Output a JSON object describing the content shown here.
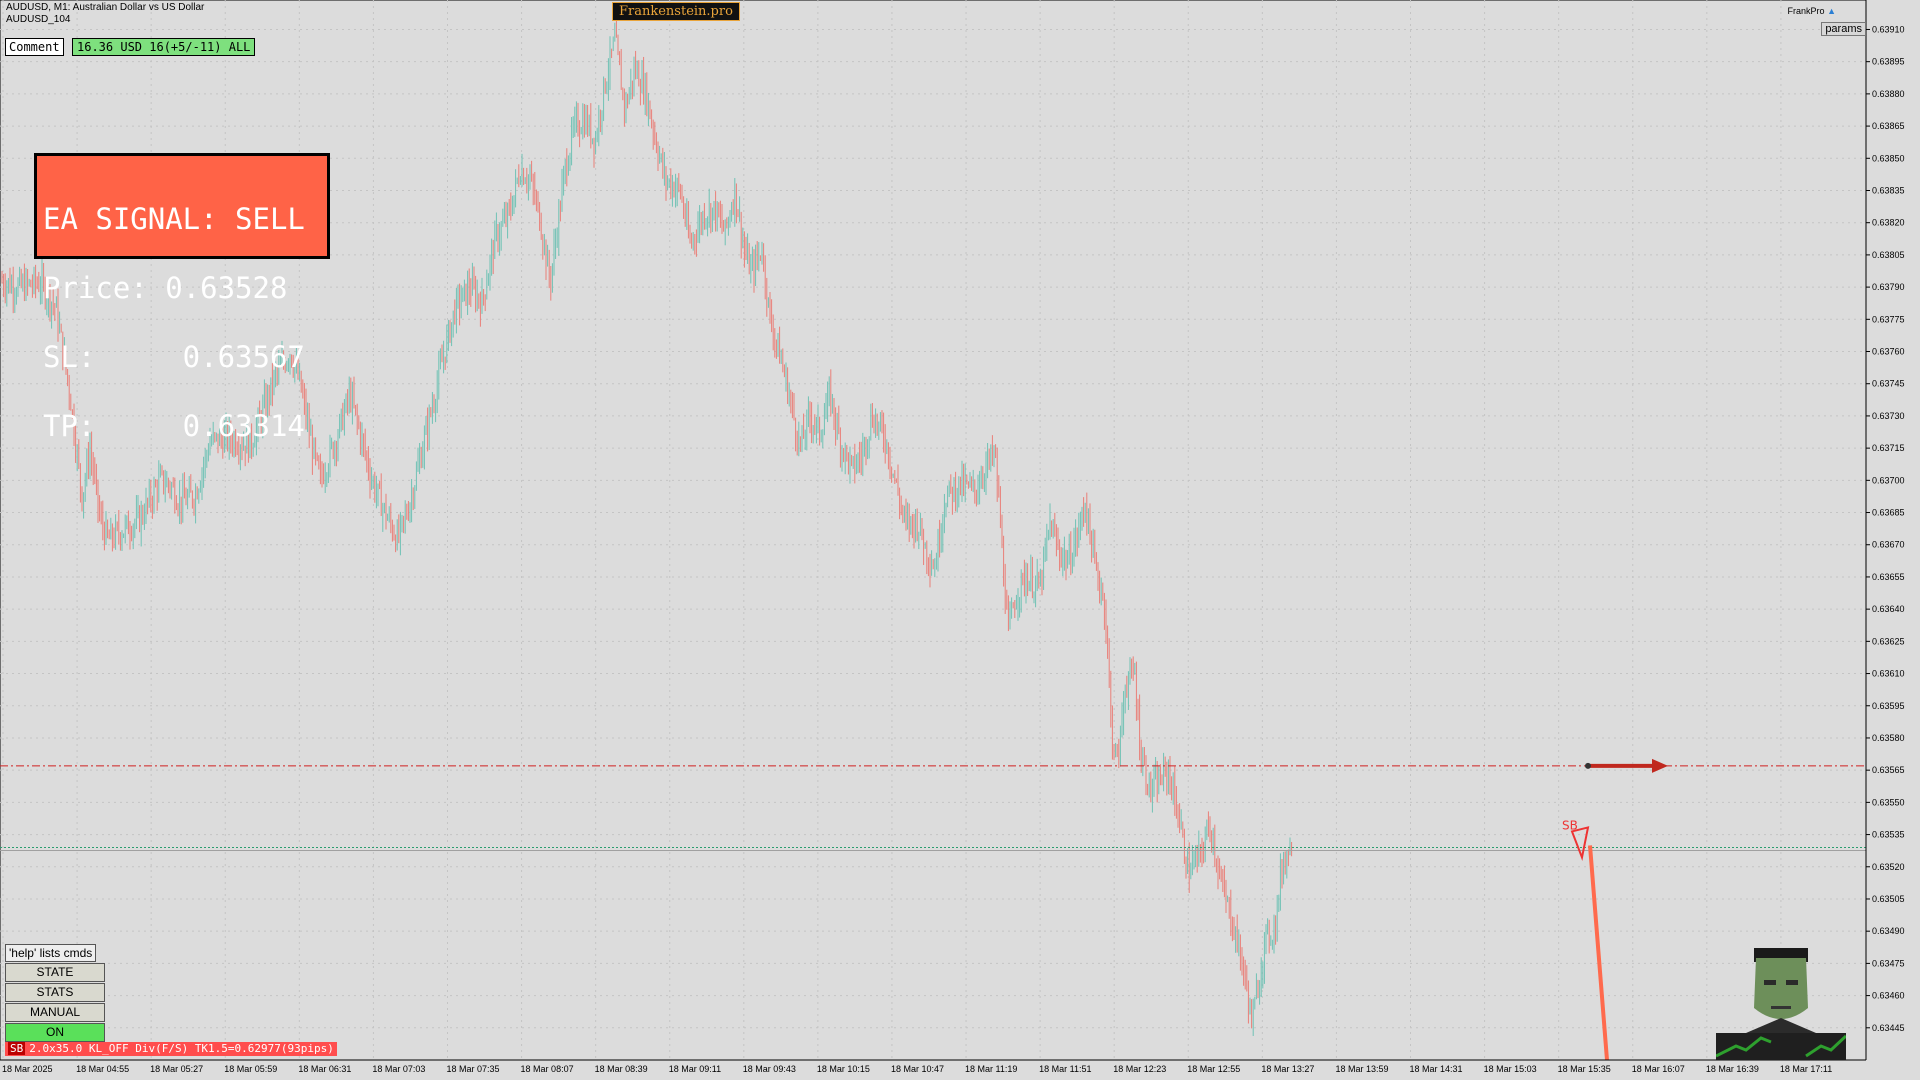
{
  "header": {
    "line1": "AUDUSD, M1:  Australian Dollar vs US Dollar",
    "line2": "AUDUSD_104"
  },
  "brand": "Frankenstein.pro",
  "comment_button": "Comment",
  "pnl_badge": "16.36 USD 16(+5/-11) ALL",
  "signal": {
    "title": "EA SIGNAL: SELL",
    "price": "Price: 0.63528",
    "sl": "SL:     0.63567",
    "tp": "TP:     0.63314"
  },
  "top_right": {
    "label": "FrankPro",
    "params": "params"
  },
  "buttons": {
    "help": "'help' lists cmds",
    "state": "STATE",
    "stats": "STATS",
    "manual": "MANUAL",
    "on": "ON"
  },
  "status": {
    "tag": "SB",
    "text": "2.0x35.0 KL_OFF Div(F/S) TK1.5=0.62977(93pips)"
  },
  "annotation": "SB",
  "colors": {
    "bull": "#6fc2b5",
    "bear": "#e97f78",
    "sl_line": "#d02020",
    "bid_line": "#2a9d6e",
    "arrow": "#c0281e"
  },
  "chart_data": {
    "type": "candlestick",
    "symbol": "AUDUSD",
    "timeframe": "M1",
    "ylim": [
      0.6343,
      0.6392
    ],
    "y_ticks": [
      "0.63910",
      "0.63895",
      "0.63880",
      "0.63865",
      "0.63850",
      "0.63835",
      "0.63820",
      "0.63805",
      "0.63790",
      "0.63775",
      "0.63760",
      "0.63745",
      "0.63730",
      "0.63715",
      "0.63700",
      "0.63685",
      "0.63670",
      "0.63655",
      "0.63640",
      "0.63625",
      "0.63610",
      "0.63595",
      "0.63580",
      "0.63565",
      "0.63550",
      "0.63535",
      "0.63520",
      "0.63505",
      "0.63490",
      "0.63475",
      "0.63460",
      "0.63445"
    ],
    "x_ticks": [
      "18 Mar 2025",
      "18 Mar 04:55",
      "18 Mar 05:27",
      "18 Mar 05:59",
      "18 Mar 06:31",
      "18 Mar 07:03",
      "18 Mar 07:35",
      "18 Mar 08:07",
      "18 Mar 08:39",
      "18 Mar 09:11",
      "18 Mar 09:43",
      "18 Mar 10:15",
      "18 Mar 10:47",
      "18 Mar 11:19",
      "18 Mar 11:51",
      "18 Mar 12:23",
      "18 Mar 12:55",
      "18 Mar 13:27",
      "18 Mar 13:59",
      "18 Mar 14:31",
      "18 Mar 15:03",
      "18 Mar 15:35",
      "18 Mar 16:07",
      "18 Mar 16:39",
      "18 Mar 17:11"
    ],
    "current_price": "0.63529",
    "sl_level": 0.63567,
    "bid_level": 0.63529,
    "price_path": [
      [
        0,
        0.63793
      ],
      [
        20,
        0.6379
      ],
      [
        40,
        0.63792
      ],
      [
        56,
        0.6378
      ],
      [
        70,
        0.6374
      ],
      [
        82,
        0.63692
      ],
      [
        90,
        0.63715
      ],
      [
        100,
        0.63682
      ],
      [
        108,
        0.63672
      ],
      [
        120,
        0.63676
      ],
      [
        140,
        0.63682
      ],
      [
        160,
        0.637
      ],
      [
        170,
        0.63698
      ],
      [
        180,
        0.6369
      ],
      [
        195,
        0.63693
      ],
      [
        210,
        0.63718
      ],
      [
        230,
        0.6372
      ],
      [
        250,
        0.63716
      ],
      [
        265,
        0.63735
      ],
      [
        275,
        0.63748
      ],
      [
        290,
        0.6376
      ],
      [
        300,
        0.63745
      ],
      [
        310,
        0.6372
      ],
      [
        320,
        0.637
      ],
      [
        335,
        0.63718
      ],
      [
        350,
        0.6374
      ],
      [
        360,
        0.63722
      ],
      [
        372,
        0.637
      ],
      [
        385,
        0.63685
      ],
      [
        398,
        0.63672
      ],
      [
        410,
        0.6369
      ],
      [
        420,
        0.6371
      ],
      [
        430,
        0.6373
      ],
      [
        442,
        0.63755
      ],
      [
        455,
        0.6378
      ],
      [
        470,
        0.6379
      ],
      [
        482,
        0.63783
      ],
      [
        495,
        0.63812
      ],
      [
        510,
        0.63825
      ],
      [
        520,
        0.63845
      ],
      [
        530,
        0.6384
      ],
      [
        540,
        0.63822
      ],
      [
        550,
        0.63792
      ],
      [
        565,
        0.63845
      ],
      [
        575,
        0.63865
      ],
      [
        585,
        0.63868
      ],
      [
        595,
        0.63858
      ],
      [
        605,
        0.63885
      ],
      [
        615,
        0.63905
      ],
      [
        625,
        0.63873
      ],
      [
        635,
        0.63892
      ],
      [
        645,
        0.63882
      ],
      [
        655,
        0.6386
      ],
      [
        665,
        0.6384
      ],
      [
        680,
        0.63835
      ],
      [
        690,
        0.6381
      ],
      [
        705,
        0.63825
      ],
      [
        715,
        0.63826
      ],
      [
        725,
        0.63815
      ],
      [
        735,
        0.63835
      ],
      [
        745,
        0.63805
      ],
      [
        752,
        0.63797
      ],
      [
        762,
        0.63808
      ],
      [
        770,
        0.63775
      ],
      [
        780,
        0.63758
      ],
      [
        790,
        0.63738
      ],
      [
        800,
        0.63715
      ],
      [
        810,
        0.6373
      ],
      [
        820,
        0.63722
      ],
      [
        830,
        0.6374
      ],
      [
        840,
        0.63718
      ],
      [
        852,
        0.63705
      ],
      [
        862,
        0.63712
      ],
      [
        872,
        0.6373
      ],
      [
        885,
        0.6372
      ],
      [
        895,
        0.637
      ],
      [
        905,
        0.6368
      ],
      [
        918,
        0.6368
      ],
      [
        928,
        0.63665
      ],
      [
        935,
        0.6366
      ],
      [
        945,
        0.63692
      ],
      [
        960,
        0.63698
      ],
      [
        975,
        0.63695
      ],
      [
        985,
        0.63706
      ],
      [
        995,
        0.63712
      ],
      [
        1000,
        0.63682
      ],
      [
        1008,
        0.63628
      ],
      [
        1015,
        0.63645
      ],
      [
        1025,
        0.63655
      ],
      [
        1040,
        0.6365
      ],
      [
        1050,
        0.6368
      ],
      [
        1058,
        0.63668
      ],
      [
        1068,
        0.63662
      ],
      [
        1078,
        0.63675
      ],
      [
        1085,
        0.6369
      ],
      [
        1095,
        0.6366
      ],
      [
        1105,
        0.63642
      ],
      [
        1112,
        0.6358
      ],
      [
        1118,
        0.63568
      ],
      [
        1125,
        0.63605
      ],
      [
        1135,
        0.6361
      ],
      [
        1140,
        0.63575
      ],
      [
        1150,
        0.63555
      ],
      [
        1160,
        0.6356
      ],
      [
        1168,
        0.63565
      ],
      [
        1178,
        0.63545
      ],
      [
        1188,
        0.63518
      ],
      [
        1200,
        0.63525
      ],
      [
        1210,
        0.6354
      ],
      [
        1222,
        0.6351
      ],
      [
        1232,
        0.63495
      ],
      [
        1240,
        0.6348
      ],
      [
        1248,
        0.6346
      ],
      [
        1252,
        0.63446
      ],
      [
        1258,
        0.63465
      ],
      [
        1265,
        0.63485
      ],
      [
        1275,
        0.63492
      ],
      [
        1282,
        0.6352
      ],
      [
        1288,
        0.63528
      ],
      [
        1292,
        0.6353
      ]
    ]
  }
}
